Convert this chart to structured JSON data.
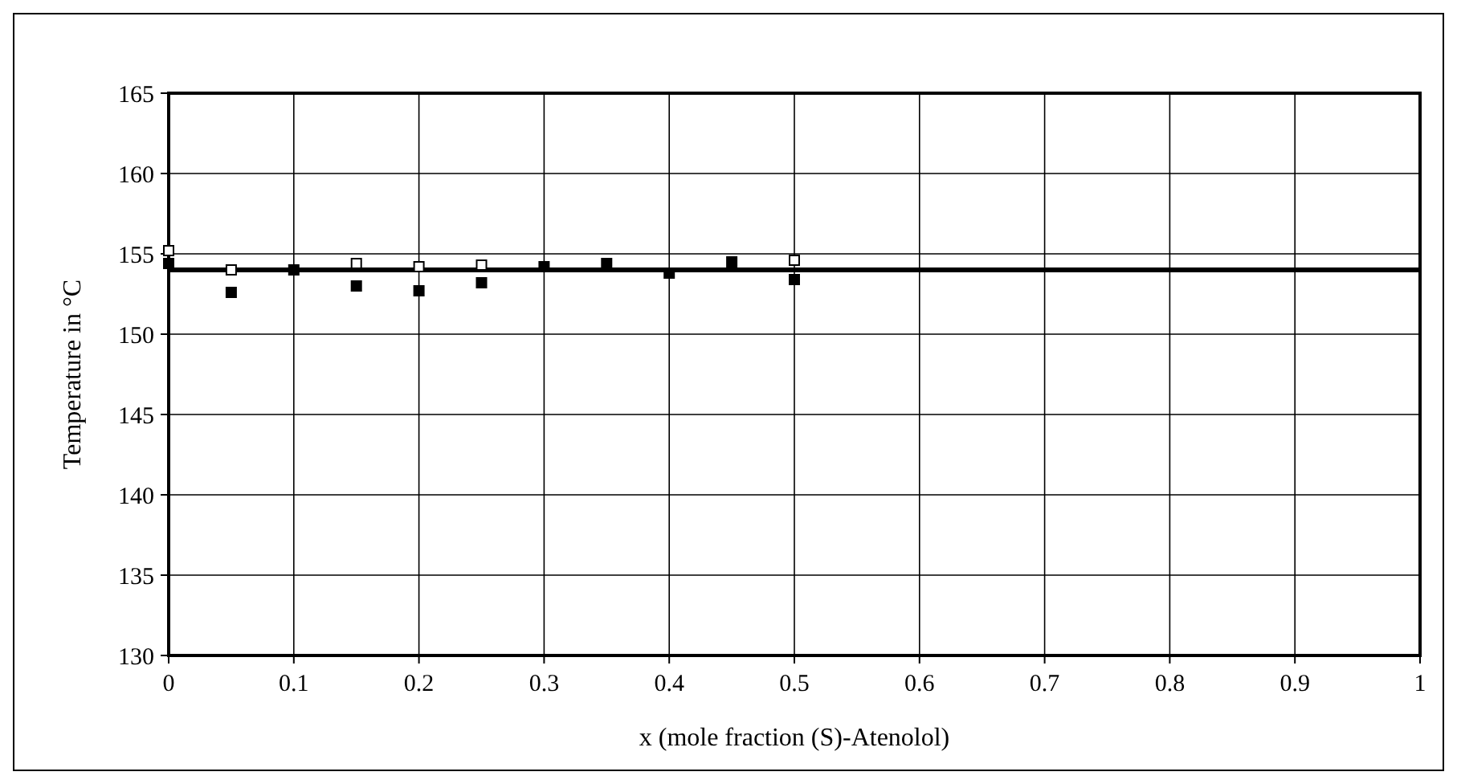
{
  "chart_data": {
    "type": "scatter",
    "xlabel": "x (mole fraction (S)-Atenolol)",
    "ylabel": "Temperature in °C",
    "xlim": [
      0,
      1
    ],
    "xticks": [
      0,
      0.1,
      0.2,
      0.3,
      0.4,
      0.5,
      0.6,
      0.7,
      0.8,
      0.9,
      1
    ],
    "ylim": [
      130,
      165
    ],
    "yticks": [
      130,
      135,
      140,
      145,
      150,
      155,
      160,
      165
    ],
    "grid": true,
    "marker": "square",
    "series": [
      {
        "color": "#ffffff",
        "x": [
          0,
          0.05,
          0.15,
          0.2,
          0.25,
          0.5
        ],
        "values": [
          155.2,
          154.0,
          154.4,
          154.2,
          154.3,
          154.6
        ]
      },
      {
        "color": "#000000",
        "x": [
          0,
          0.05,
          0.1,
          0.15,
          0.2,
          0.25,
          0.3,
          0.35,
          0.4,
          0.45,
          0.5
        ],
        "values": [
          154.4,
          152.6,
          154.0,
          153.0,
          152.7,
          153.2,
          154.2,
          154.4,
          153.8,
          154.5,
          153.4
        ]
      }
    ],
    "ref_lines": [
      {
        "axis": "y",
        "value": 154,
        "color": "#000000"
      }
    ]
  }
}
